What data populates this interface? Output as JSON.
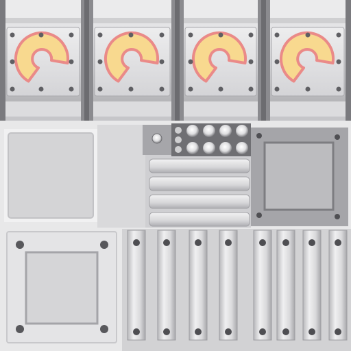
{
  "texture": {
    "colors": {
      "base": "#e9e9ea",
      "steel_light": "#d7d7d9",
      "steel_mid": "#bdbdc0",
      "steel_dark": "#8e8e92",
      "column_dark": "#77777b",
      "rivet": "#5f5f63",
      "ring_fill": "#f8d98f",
      "ring_edge": "#ea8a88"
    },
    "icon_names": {
      "warning_ring": "c-ring-icon",
      "rivet": "rivet-icon",
      "bolt": "bolt-icon"
    }
  }
}
